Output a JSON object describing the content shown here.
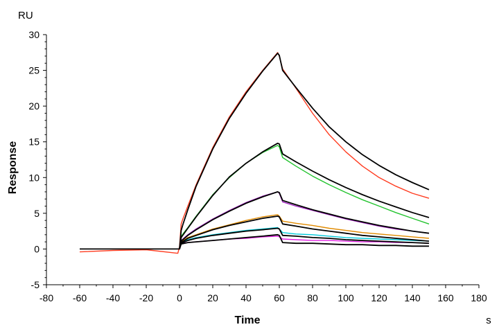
{
  "chart_data": {
    "type": "line",
    "title": "",
    "xlabel": "Time",
    "ylabel": "Response",
    "y_unit": "RU",
    "x_unit": "s",
    "xlim": [
      -80,
      180
    ],
    "ylim": [
      -5,
      30
    ],
    "xticks": [
      -80,
      -60,
      -40,
      -20,
      0,
      20,
      40,
      60,
      80,
      100,
      120,
      140,
      160,
      180
    ],
    "yticks": [
      -5,
      0,
      5,
      10,
      15,
      20,
      25,
      30
    ],
    "grid": false,
    "legend": "none",
    "series": [
      {
        "color": "#ff3b1f",
        "role": "measured",
        "x": [
          -60,
          -40,
          -20,
          -1,
          0,
          1,
          2,
          5,
          10,
          20,
          30,
          40,
          50,
          59,
          60,
          62,
          70,
          80,
          90,
          100,
          110,
          120,
          130,
          140,
          150
        ],
        "y": [
          -0.4,
          -0.2,
          -0.1,
          -0.6,
          0.3,
          3.5,
          4.2,
          6.0,
          9.0,
          14.2,
          18.5,
          22.0,
          25.0,
          27.5,
          27.0,
          25.2,
          22.5,
          19.0,
          16.0,
          13.6,
          11.6,
          10.0,
          8.8,
          7.8,
          7.1
        ]
      },
      {
        "color": "#000000",
        "role": "fit",
        "x": [
          -60,
          -1,
          0,
          1,
          2,
          5,
          10,
          20,
          30,
          40,
          50,
          59,
          60,
          62,
          70,
          80,
          90,
          100,
          110,
          120,
          130,
          140,
          150
        ],
        "y": [
          0.0,
          0.0,
          0.0,
          2.6,
          3.4,
          5.5,
          8.8,
          14.0,
          18.3,
          21.8,
          24.9,
          27.4,
          27.1,
          25.0,
          22.6,
          19.7,
          17.1,
          15.0,
          13.2,
          11.7,
          10.4,
          9.3,
          8.3
        ]
      },
      {
        "color": "#22c32e",
        "role": "measured",
        "x": [
          0,
          1,
          5,
          10,
          20,
          30,
          40,
          50,
          59,
          60,
          62,
          70,
          80,
          90,
          100,
          110,
          120,
          130,
          140,
          150
        ],
        "y": [
          0.0,
          1.8,
          3.0,
          4.6,
          7.6,
          10.0,
          12.0,
          13.5,
          14.5,
          14.3,
          12.8,
          11.6,
          10.2,
          9.0,
          7.9,
          6.9,
          6.0,
          5.1,
          4.3,
          3.5
        ]
      },
      {
        "color": "#000000",
        "role": "fit",
        "x": [
          0,
          1,
          5,
          10,
          20,
          30,
          40,
          50,
          59,
          60,
          62,
          70,
          80,
          90,
          100,
          110,
          120,
          130,
          140,
          150
        ],
        "y": [
          0.0,
          1.6,
          2.9,
          4.5,
          7.5,
          10.1,
          12.0,
          13.6,
          14.8,
          14.7,
          13.3,
          12.2,
          10.9,
          9.7,
          8.6,
          7.6,
          6.7,
          5.9,
          5.1,
          4.4
        ]
      },
      {
        "color": "#a020c0",
        "role": "measured",
        "x": [
          0,
          1,
          5,
          10,
          20,
          30,
          40,
          50,
          59,
          60,
          62,
          70,
          80,
          90,
          100,
          110,
          120,
          130,
          140,
          150
        ],
        "y": [
          0.0,
          1.2,
          2.0,
          2.8,
          4.2,
          5.4,
          6.5,
          7.4,
          8.0,
          7.8,
          6.6,
          6.0,
          5.4,
          4.8,
          4.2,
          3.7,
          3.2,
          2.8,
          2.5,
          2.2
        ]
      },
      {
        "color": "#000000",
        "role": "fit",
        "x": [
          0,
          1,
          5,
          10,
          20,
          30,
          40,
          50,
          59,
          60,
          62,
          70,
          80,
          90,
          100,
          110,
          120,
          130,
          140,
          150
        ],
        "y": [
          0.0,
          1.1,
          1.9,
          2.7,
          4.1,
          5.3,
          6.4,
          7.3,
          8.0,
          7.9,
          6.8,
          6.2,
          5.5,
          4.9,
          4.3,
          3.8,
          3.3,
          2.9,
          2.5,
          2.2
        ]
      },
      {
        "color": "#e08a00",
        "role": "measured",
        "x": [
          0,
          1,
          5,
          10,
          20,
          30,
          40,
          50,
          59,
          60,
          62,
          70,
          80,
          90,
          100,
          110,
          120,
          130,
          140,
          150
        ],
        "y": [
          0.0,
          1.0,
          1.6,
          2.0,
          2.8,
          3.4,
          4.0,
          4.5,
          4.8,
          4.6,
          3.9,
          3.6,
          3.3,
          2.9,
          2.6,
          2.3,
          2.1,
          1.9,
          1.7,
          1.5
        ]
      },
      {
        "color": "#000000",
        "role": "fit",
        "x": [
          0,
          1,
          5,
          10,
          20,
          30,
          40,
          50,
          59,
          60,
          62,
          70,
          80,
          90,
          100,
          110,
          120,
          130,
          140,
          150
        ],
        "y": [
          0.0,
          0.9,
          1.5,
          1.9,
          2.7,
          3.3,
          3.8,
          4.3,
          4.6,
          4.5,
          3.5,
          3.2,
          2.8,
          2.5,
          2.2,
          1.9,
          1.7,
          1.5,
          1.3,
          1.1
        ]
      },
      {
        "color": "#00c8d8",
        "role": "measured",
        "x": [
          0,
          1,
          5,
          10,
          20,
          30,
          40,
          50,
          59,
          60,
          62,
          70,
          80,
          90,
          100,
          110,
          120,
          130,
          140,
          150
        ],
        "y": [
          0.0,
          0.9,
          1.3,
          1.6,
          2.0,
          2.3,
          2.6,
          2.8,
          3.0,
          2.8,
          2.3,
          2.1,
          2.0,
          1.8,
          1.6,
          1.5,
          1.4,
          1.3,
          1.2,
          1.1
        ]
      },
      {
        "color": "#000000",
        "role": "fit",
        "x": [
          0,
          1,
          5,
          10,
          20,
          30,
          40,
          50,
          59,
          60,
          62,
          70,
          80,
          90,
          100,
          110,
          120,
          130,
          140,
          150
        ],
        "y": [
          0.0,
          0.8,
          1.2,
          1.5,
          1.9,
          2.2,
          2.5,
          2.7,
          2.9,
          2.8,
          1.9,
          1.8,
          1.6,
          1.5,
          1.3,
          1.2,
          1.1,
          1.0,
          0.9,
          0.8
        ]
      },
      {
        "color": "#e020e0",
        "role": "measured",
        "x": [
          0,
          1,
          5,
          10,
          20,
          30,
          40,
          50,
          59,
          60,
          62,
          70,
          80,
          90,
          100,
          110,
          120,
          130,
          140,
          150
        ],
        "y": [
          0.0,
          0.8,
          0.9,
          1.0,
          1.2,
          1.4,
          1.5,
          1.7,
          1.8,
          1.7,
          1.4,
          1.3,
          1.2,
          1.2,
          1.1,
          1.0,
          1.0,
          0.9,
          0.9,
          0.8
        ]
      },
      {
        "color": "#000000",
        "role": "fit",
        "x": [
          0,
          1,
          5,
          10,
          20,
          30,
          40,
          50,
          59,
          60,
          62,
          70,
          80,
          90,
          100,
          110,
          120,
          130,
          140,
          150
        ],
        "y": [
          0.0,
          0.7,
          0.9,
          1.0,
          1.2,
          1.4,
          1.6,
          1.8,
          2.0,
          1.9,
          0.9,
          0.8,
          0.8,
          0.7,
          0.6,
          0.6,
          0.5,
          0.5,
          0.4,
          0.4
        ]
      }
    ]
  }
}
